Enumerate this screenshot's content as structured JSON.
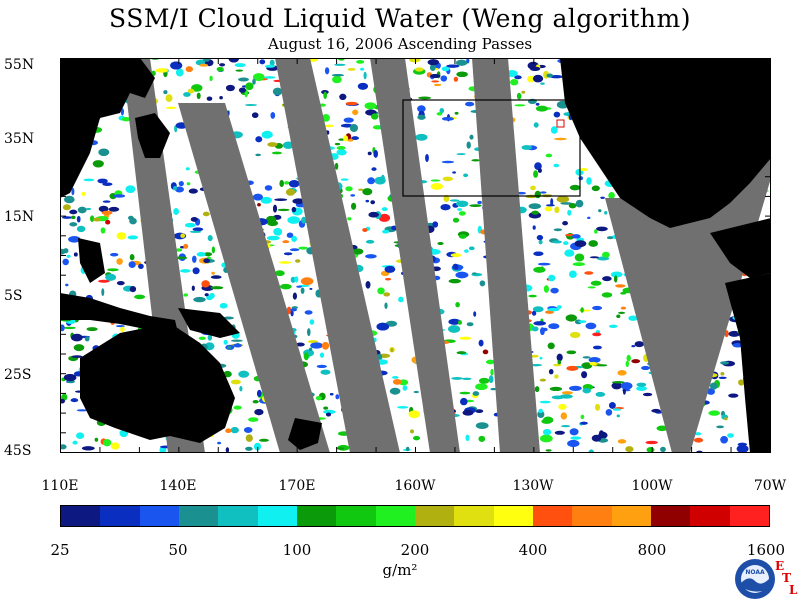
{
  "title": "SSM/I Cloud Liquid Water (Weng algorithm)",
  "subtitle": "August 16, 2006  Ascending Passes",
  "latitude_labels": [
    "55N",
    "35N",
    "15N",
    "5S",
    "25S",
    "45S"
  ],
  "longitude_labels": [
    "110E",
    "140E",
    "170E",
    "160W",
    "130W",
    "100W",
    "70W"
  ],
  "colorbar": {
    "colors": [
      "#0d1880",
      "#0a2fc0",
      "#1a55f0",
      "#1a9090",
      "#10c0c0",
      "#10f0f0",
      "#0a9a0a",
      "#10c810",
      "#20f020",
      "#b0b010",
      "#e0e010",
      "#ffff10",
      "#ff5010",
      "#ff8010",
      "#ffa010",
      "#900000",
      "#d00000",
      "#ff2020"
    ],
    "tick_labels": [
      "25",
      "50",
      "100",
      "200",
      "400",
      "800",
      "1600"
    ],
    "units": "g/m²"
  },
  "map_colors": {
    "land": "#000000",
    "no_data": "#707070",
    "clear": "#ffffff"
  },
  "logo": {
    "org": "NOAA",
    "letters": [
      "E",
      "T",
      "L"
    ]
  }
}
